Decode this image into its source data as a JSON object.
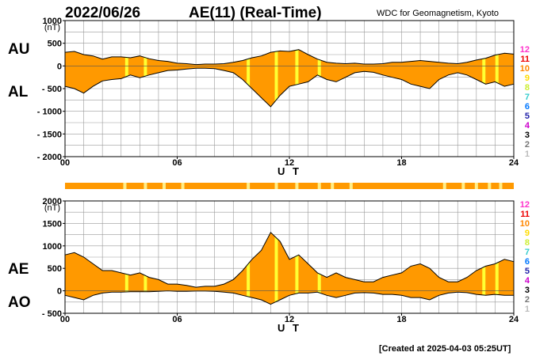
{
  "header": {
    "date": "2022/06/26",
    "title": "AE(11) (Real-Time)",
    "source": "WDC for Geomagnetism, Kyoto"
  },
  "footer": {
    "created": "[Created at 2025-04-03 05:25UT]"
  },
  "colors": {
    "fill": "#FF9900",
    "yellow": "#FFFF33",
    "light_yellow": "#FFEE88",
    "grid": "#999999"
  },
  "station_scale": [
    {
      "label": "12",
      "color": "#FF33CC"
    },
    {
      "label": "11",
      "color": "#EE0000"
    },
    {
      "label": "10",
      "color": "#FF8800"
    },
    {
      "label": "9",
      "color": "#FFDD00"
    },
    {
      "label": "8",
      "color": "#CCEE33"
    },
    {
      "label": "7",
      "color": "#33CCCC"
    },
    {
      "label": "6",
      "color": "#0077FF"
    },
    {
      "label": "5",
      "color": "#2222AA"
    },
    {
      "label": "4",
      "color": "#CC00CC"
    },
    {
      "label": "3",
      "color": "#000000"
    },
    {
      "label": "2",
      "color": "#777777"
    },
    {
      "label": "1",
      "color": "#BBBBBB"
    }
  ],
  "chart_data": [
    {
      "type": "area",
      "name": "AU/AL",
      "labels": {
        "upper": "AU",
        "lower": "AL"
      },
      "xlabel": "U T",
      "unit": "(nT)",
      "xlim": [
        0,
        24
      ],
      "ylim": [
        -2000,
        1000
      ],
      "yticks": [
        1000,
        500,
        0,
        -500,
        -1000,
        -1500,
        -2000
      ],
      "ytick_labels": [
        "1000",
        "500",
        "0",
        "- 500",
        "- 1000",
        "- 1500",
        "- 2000"
      ],
      "xtick_labels": [
        "00",
        "06",
        "12",
        "18",
        "24"
      ],
      "x": [
        0,
        0.5,
        1,
        1.5,
        2,
        2.5,
        3,
        3.5,
        4,
        4.5,
        5,
        5.5,
        6,
        6.5,
        7,
        7.5,
        8,
        8.5,
        9,
        9.5,
        10,
        10.5,
        11,
        11.5,
        12,
        12.5,
        13,
        13.5,
        14,
        14.5,
        15,
        15.5,
        16,
        16.5,
        17,
        17.5,
        18,
        18.5,
        19,
        19.5,
        20,
        20.5,
        21,
        21.5,
        22,
        22.5,
        23,
        23.5,
        24
      ],
      "series": [
        {
          "name": "AU",
          "values": [
            300,
            320,
            250,
            220,
            150,
            200,
            200,
            180,
            220,
            160,
            120,
            100,
            60,
            50,
            30,
            40,
            40,
            50,
            80,
            120,
            180,
            220,
            300,
            330,
            320,
            360,
            250,
            150,
            80,
            60,
            50,
            60,
            40,
            40,
            50,
            80,
            80,
            100,
            120,
            100,
            80,
            60,
            50,
            80,
            130,
            170,
            240,
            280,
            260
          ]
        },
        {
          "name": "AL",
          "values": [
            -450,
            -500,
            -600,
            -450,
            -330,
            -300,
            -280,
            -200,
            -260,
            -200,
            -150,
            -100,
            -90,
            -70,
            -50,
            -50,
            -60,
            -100,
            -150,
            -300,
            -500,
            -700,
            -900,
            -650,
            -450,
            -400,
            -350,
            -200,
            -300,
            -350,
            -250,
            -150,
            -120,
            -140,
            -200,
            -250,
            -300,
            -400,
            -450,
            -500,
            -300,
            -200,
            -150,
            -200,
            -300,
            -400,
            -350,
            -450,
            -400
          ]
        }
      ],
      "yellow_bands": [
        3.3,
        4.3,
        9.8,
        11.3,
        12.4,
        13.6,
        22.4,
        23.1
      ]
    },
    {
      "type": "area",
      "name": "AE/AO",
      "labels": {
        "upper": "AE",
        "lower": "AO"
      },
      "xlabel": "U T",
      "unit": "(nT)",
      "xlim": [
        0,
        24
      ],
      "ylim": [
        -500,
        2000
      ],
      "yticks": [
        2000,
        1500,
        1000,
        500,
        0,
        -500
      ],
      "ytick_labels": [
        "2000",
        "1500",
        "1000",
        "500",
        "0",
        "- 500"
      ],
      "xtick_labels": [
        "00",
        "06",
        "12",
        "18",
        "24"
      ],
      "x": [
        0,
        0.5,
        1,
        1.5,
        2,
        2.5,
        3,
        3.5,
        4,
        4.5,
        5,
        5.5,
        6,
        6.5,
        7,
        7.5,
        8,
        8.5,
        9,
        9.5,
        10,
        10.5,
        11,
        11.5,
        12,
        12.5,
        13,
        13.5,
        14,
        14.5,
        15,
        15.5,
        16,
        16.5,
        17,
        17.5,
        18,
        18.5,
        19,
        19.5,
        20,
        20.5,
        21,
        21.5,
        22,
        22.5,
        23,
        23.5,
        24
      ],
      "series": [
        {
          "name": "AE",
          "values": [
            800,
            850,
            750,
            600,
            450,
            450,
            400,
            350,
            400,
            300,
            250,
            150,
            150,
            120,
            80,
            100,
            100,
            150,
            250,
            450,
            700,
            900,
            1300,
            1100,
            700,
            800,
            600,
            400,
            300,
            400,
            300,
            250,
            200,
            200,
            300,
            350,
            400,
            550,
            600,
            500,
            300,
            200,
            200,
            300,
            450,
            550,
            600,
            700,
            650
          ]
        },
        {
          "name": "AO",
          "values": [
            -100,
            -150,
            -200,
            -100,
            -50,
            -30,
            -30,
            -20,
            -20,
            -20,
            -10,
            0,
            -10,
            -10,
            -5,
            -5,
            -10,
            -30,
            -50,
            -100,
            -150,
            -200,
            -300,
            -200,
            -100,
            -50,
            -50,
            -30,
            -100,
            -150,
            -100,
            -50,
            -40,
            -50,
            -80,
            -80,
            -100,
            -150,
            -150,
            -200,
            -100,
            -50,
            -30,
            -40,
            -80,
            -100,
            -80,
            -100,
            -100
          ]
        }
      ],
      "yellow_bands": [
        3.3,
        4.3,
        9.8,
        11.3,
        12.4,
        13.6,
        22.4,
        23.1
      ]
    }
  ],
  "status_strip": {
    "x": [
      0,
      24
    ],
    "yellow_marks": [
      3.2,
      4.3,
      5.3,
      6.3,
      9.8,
      11.3,
      12.4,
      13.6,
      14.3,
      15.3,
      20.3,
      21.3,
      22.0,
      22.7,
      23.3
    ]
  }
}
